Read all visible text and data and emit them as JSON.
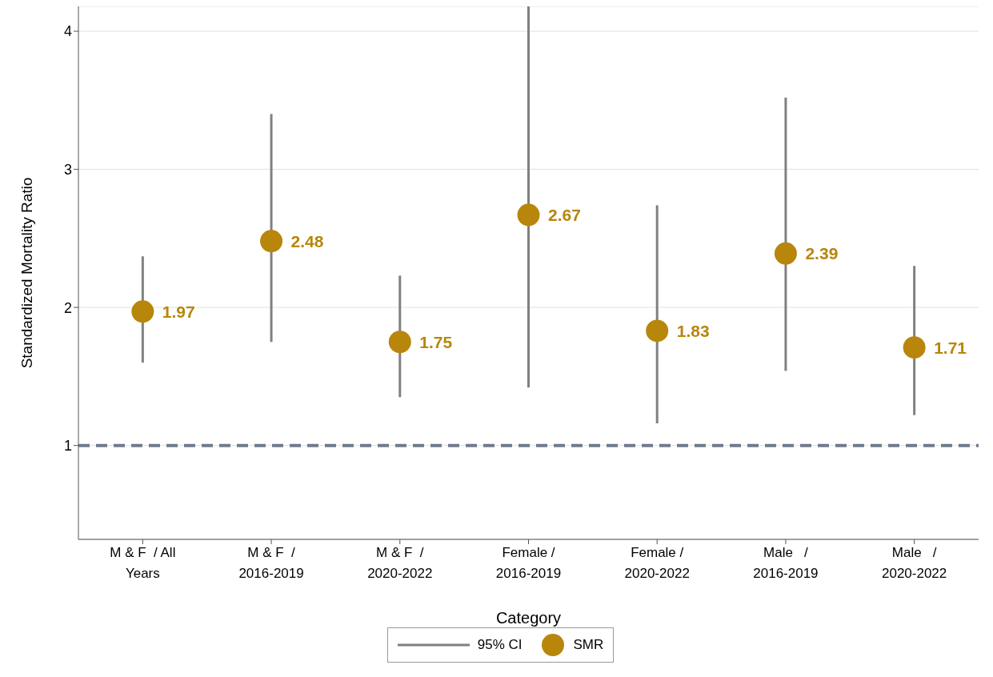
{
  "chart_data": {
    "type": "scatter",
    "xlabel": "Category",
    "ylabel": "Standardized Mortality Ratio",
    "categories": [
      "M & F  / All\nYears",
      "M & F  /\n2016-2019",
      "M & F  /\n2020-2022",
      "Female /\n2016-2019",
      "Female /\n2020-2022",
      "Male   /\n2016-2019",
      "Male   /\n2020-2022"
    ],
    "series": [
      {
        "name": "SMR",
        "color": "#b8860b",
        "values": [
          1.97,
          2.48,
          1.75,
          2.67,
          1.83,
          2.39,
          1.71
        ],
        "errors": [
          [
            1.6,
            2.37
          ],
          [
            1.75,
            3.4
          ],
          [
            1.35,
            2.23
          ],
          [
            1.42,
            4.18
          ],
          [
            1.16,
            2.74
          ],
          [
            1.54,
            3.52
          ],
          [
            1.22,
            2.3
          ]
        ]
      }
    ],
    "annotations": [
      "95% CI"
    ],
    "ylim": [
      0.32,
      4.18
    ],
    "yticks": [
      1,
      2,
      3,
      4
    ],
    "grid": "y",
    "legend": "bottom",
    "marker": "circle",
    "data_labels": true,
    "ref_lines": [
      {
        "axis": "y",
        "value": 1,
        "color": "#6e7b8b",
        "line_style": "dashed"
      }
    ]
  }
}
